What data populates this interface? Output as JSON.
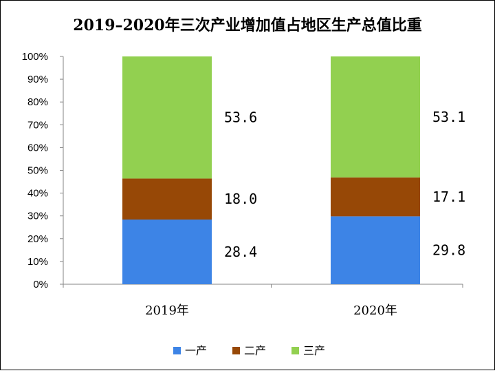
{
  "chart_data": {
    "type": "bar",
    "stacked": true,
    "title": "2019–2020年三次产业增加值占地区生产总值比重",
    "categories": [
      "2019年",
      "2020年"
    ],
    "series": [
      {
        "name": "一产",
        "values": [
          28.4,
          29.8
        ],
        "color": "#3D84E6"
      },
      {
        "name": "二产",
        "values": [
          18.0,
          17.1
        ],
        "color": "#974806"
      },
      {
        "name": "三产",
        "values": [
          53.6,
          53.1
        ],
        "color": "#92D050"
      }
    ],
    "ylim": [
      0,
      100
    ],
    "yticks": [
      "0%",
      "10%",
      "20%",
      "30%",
      "40%",
      "50%",
      "60%",
      "70%",
      "80%",
      "90%",
      "100%"
    ],
    "grid": false,
    "legend": "bottom"
  }
}
